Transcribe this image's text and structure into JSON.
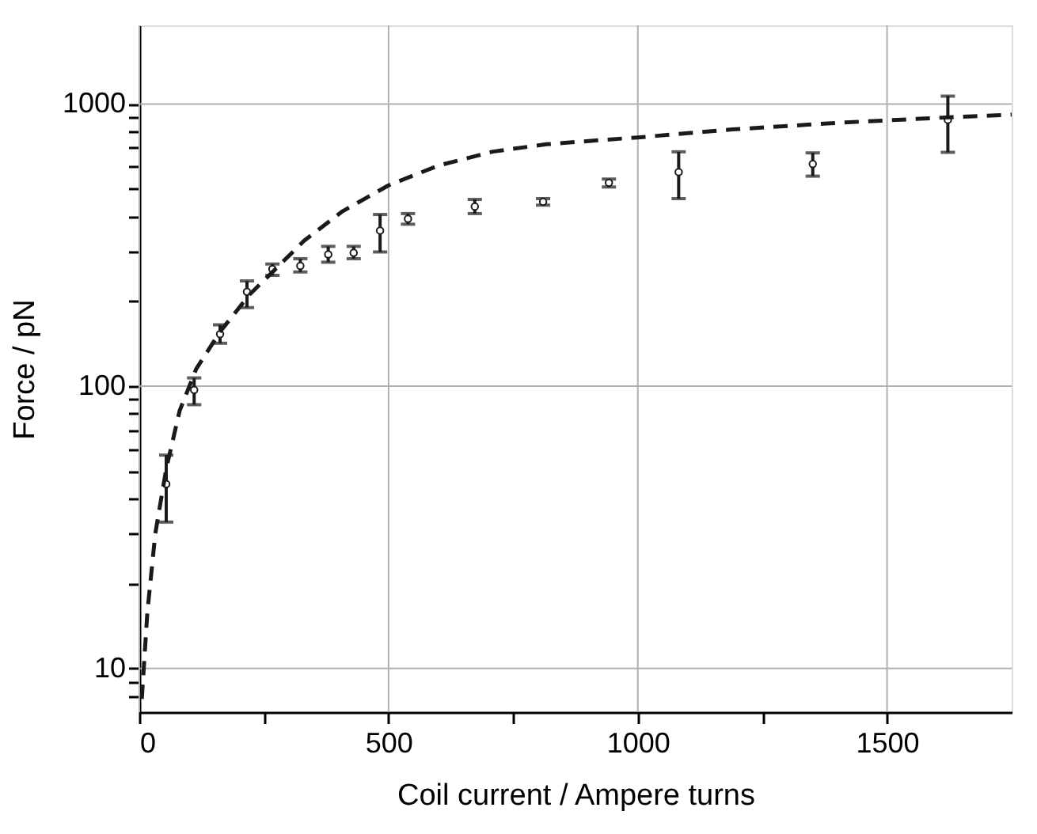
{
  "chart_data": {
    "type": "scatter",
    "xlabel": "Coil current / Ampere turns",
    "ylabel": "Force / pN",
    "xlim": [
      0,
      1750
    ],
    "ylim": [
      7,
      1900
    ],
    "log": "y",
    "grid": true,
    "xticks": [
      0,
      {
        "value": 250,
        "label": null
      },
      500,
      {
        "value": 750,
        "label": null
      },
      1000,
      {
        "value": 1250,
        "label": null
      },
      1500
    ],
    "yticks": [
      {
        "value": 8,
        "label": null
      },
      {
        "value": 9,
        "label": null
      },
      10,
      {
        "value": 20,
        "label": null
      },
      {
        "value": 30,
        "label": null
      },
      {
        "value": 40,
        "label": null
      },
      {
        "value": 50,
        "label": null
      },
      {
        "value": 60,
        "label": null
      },
      {
        "value": 70,
        "label": null
      },
      {
        "value": 80,
        "label": null
      },
      {
        "value": 90,
        "label": null
      },
      100,
      {
        "value": 200,
        "label": null
      },
      {
        "value": 300,
        "label": null
      },
      {
        "value": 400,
        "label": null
      },
      {
        "value": 500,
        "label": null
      },
      {
        "value": 600,
        "label": null
      },
      {
        "value": 700,
        "label": null
      },
      {
        "value": 800,
        "label": null
      },
      {
        "value": 900,
        "label": null
      },
      1000
    ],
    "series": [
      {
        "color": "#1a1a1a",
        "marker": "circle",
        "x": [
          54,
          110,
          162,
          216,
          267,
          323,
          379,
          430,
          483,
          539,
          673,
          810,
          942,
          1082,
          1351,
          1622
        ],
        "values": [
          45,
          97,
          153,
          216,
          260,
          267,
          293,
          297,
          356,
          392,
          433,
          450,
          526,
          574,
          613,
          879
        ],
        "errors": [
          [
            33,
            57
          ],
          [
            86,
            107
          ],
          [
            142,
            165
          ],
          [
            190,
            236
          ],
          [
            247,
            271
          ],
          [
            254,
            283
          ],
          [
            275,
            313
          ],
          [
            283,
            313
          ],
          [
            299,
            406
          ],
          [
            375,
            409
          ],
          [
            409,
            459
          ],
          [
            438,
            462
          ],
          [
            508,
            542
          ],
          [
            462,
            677
          ],
          [
            555,
            671
          ],
          [
            674,
            1067
          ]
        ]
      },
      {
        "type": "line",
        "color": "#1a1a1a",
        "line_style": "dashed",
        "marker": "none",
        "x": [
          5,
          16,
          32,
          54,
          81,
          114,
          162,
          222,
          276,
          330,
          406,
          500,
          600,
          709,
          817,
          925,
          1000,
          1190,
          1408,
          1625,
          1750
        ],
        "values": [
          7.8,
          15.7,
          30,
          51,
          82,
          115,
          156,
          212,
          263,
          327,
          415,
          515,
          605,
          678,
          720,
          745,
          761,
          813,
          859,
          897,
          917
        ]
      }
    ]
  }
}
